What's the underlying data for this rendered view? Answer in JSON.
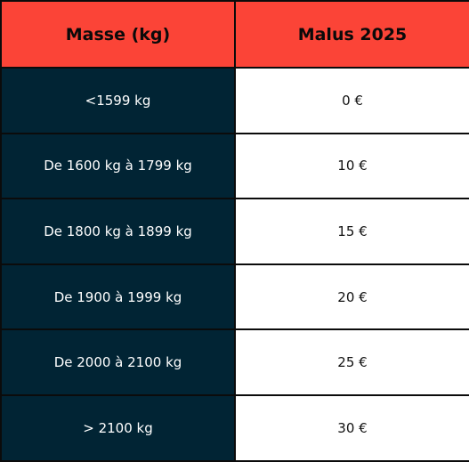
{
  "table": {
    "headers": [
      "Masse (kg)",
      "Malus 2025"
    ],
    "rows": [
      {
        "mass": "<1599 kg",
        "malus": "0 €"
      },
      {
        "mass": "De 1600 kg à 1799 kg",
        "malus": "10 €"
      },
      {
        "mass": "De 1800 kg à 1899 kg",
        "malus": "15 €"
      },
      {
        "mass": "De 1900 à 1999 kg",
        "malus": "20 €"
      },
      {
        "mass": "De 2000 à 2100 kg",
        "malus": "25 €"
      },
      {
        "mass": "> 2100 kg",
        "malus": "30 €"
      }
    ]
  },
  "colors": {
    "header_bg": "#fb4437",
    "mass_column_bg": "#012434",
    "malus_column_bg": "#ffffff",
    "border": "#0b0b0b"
  }
}
